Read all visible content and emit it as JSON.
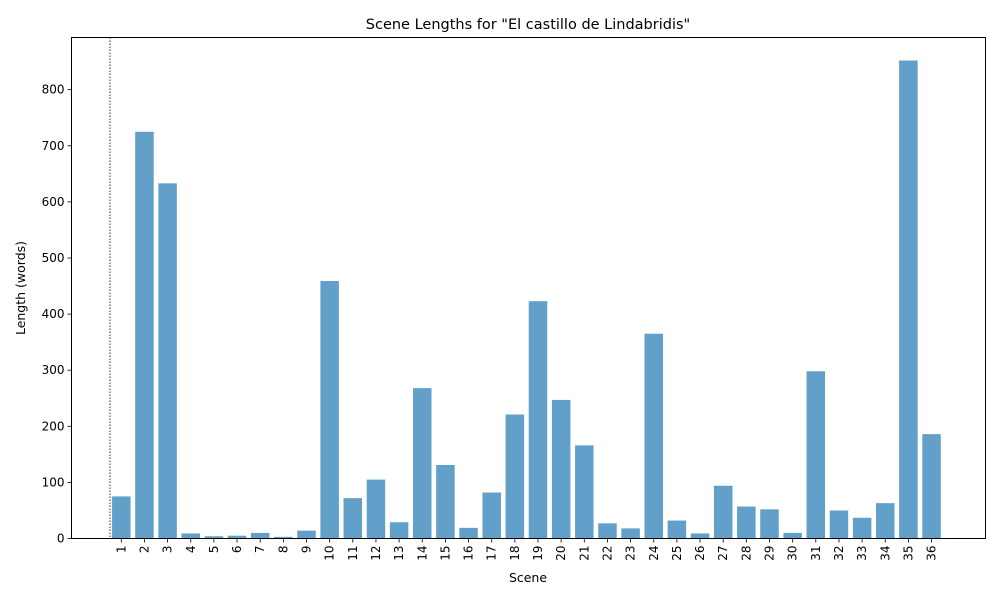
{
  "chart_data": {
    "type": "bar",
    "title": "Scene Lengths for \"El castillo de Lindabridis\"",
    "xlabel": "Scene",
    "ylabel": "Length (words)",
    "ylim": [
      0,
      893
    ],
    "yticks": [
      0,
      100,
      200,
      300,
      400,
      500,
      600,
      700,
      800
    ],
    "grid": false,
    "bar_color": "#1f77b4",
    "bar_alpha": 0.7,
    "categories": [
      "1",
      "2",
      "3",
      "4",
      "5",
      "6",
      "7",
      "8",
      "9",
      "10",
      "11",
      "12",
      "13",
      "14",
      "15",
      "16",
      "17",
      "18",
      "19",
      "20",
      "21",
      "22",
      "23",
      "24",
      "25",
      "26",
      "27",
      "28",
      "29",
      "30",
      "31",
      "32",
      "33",
      "34",
      "35",
      "36"
    ],
    "values": [
      75,
      725,
      633,
      9,
      4,
      5,
      10,
      3,
      14,
      459,
      72,
      105,
      29,
      268,
      131,
      19,
      82,
      221,
      423,
      247,
      166,
      27,
      18,
      365,
      32,
      9,
      94,
      57,
      52,
      10,
      298,
      50,
      37,
      63,
      852,
      186
    ],
    "vline": {
      "x": "1",
      "style": "dotted"
    }
  }
}
